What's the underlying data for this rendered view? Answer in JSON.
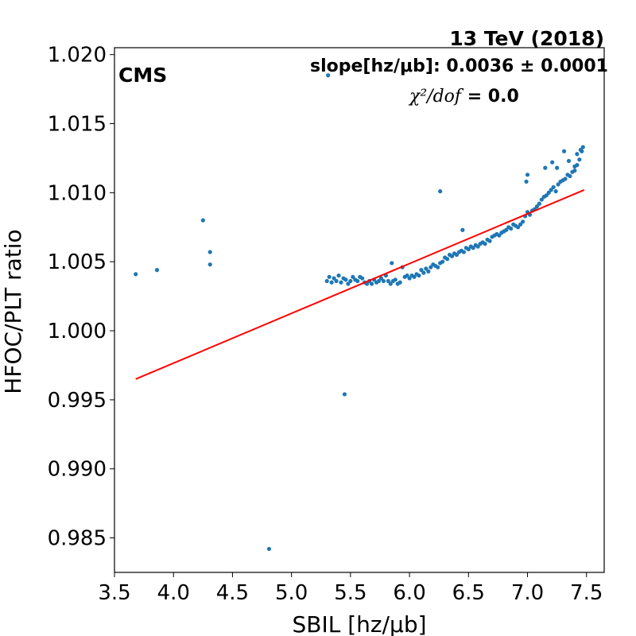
{
  "chart_data": {
    "type": "scatter",
    "title": "13 TeV (2018)",
    "experiment_label": "CMS",
    "xlabel": "SBIL [hz/μb]",
    "ylabel": "HFOC/PLT ratio",
    "xlim": [
      3.5,
      7.65
    ],
    "ylim": [
      0.9825,
      1.0205
    ],
    "xticks": [
      "3.5",
      "4.0",
      "4.5",
      "5.0",
      "5.5",
      "6.0",
      "6.5",
      "7.0",
      "7.5"
    ],
    "yticks": [
      "0.985",
      "0.990",
      "0.995",
      "1.000",
      "1.005",
      "1.010",
      "1.015",
      "1.020"
    ],
    "annotations": {
      "slope_label": "slope[hz/μb]: 0.0036 ± 0.0001",
      "chi2_label": "χ²/dof",
      "chi2_value": " = 0.0"
    },
    "grid": false,
    "colors": {
      "points": "#1f77b4",
      "fit": "#ff0000"
    },
    "fit_line": {
      "x": [
        3.68,
        7.48
      ],
      "y": [
        0.9965,
        1.0102
      ]
    },
    "series": [
      {
        "marker": "dot",
        "points": [
          [
            3.68,
            1.0041
          ],
          [
            3.86,
            1.0044
          ],
          [
            4.25,
            1.008
          ],
          [
            4.31,
            1.0057
          ],
          [
            4.31,
            1.0048
          ],
          [
            4.81,
            0.9842
          ],
          [
            5.31,
            1.0185
          ],
          [
            5.45,
            0.9954
          ],
          [
            6.26,
            1.0101
          ],
          [
            6.45,
            1.0073
          ],
          [
            5.3,
            1.0036
          ],
          [
            5.32,
            1.0039
          ],
          [
            5.34,
            1.0035
          ],
          [
            5.36,
            1.0038
          ],
          [
            5.38,
            1.0036
          ],
          [
            5.4,
            1.004
          ],
          [
            5.42,
            1.0035
          ],
          [
            5.44,
            1.0038
          ],
          [
            5.46,
            1.0037
          ],
          [
            5.48,
            1.0034
          ],
          [
            5.5,
            1.0036
          ],
          [
            5.52,
            1.0039
          ],
          [
            5.54,
            1.0037
          ],
          [
            5.56,
            1.0036
          ],
          [
            5.58,
            1.0039
          ],
          [
            5.6,
            1.0038
          ],
          [
            5.62,
            1.0035
          ],
          [
            5.64,
            1.0034
          ],
          [
            5.66,
            1.0036
          ],
          [
            5.68,
            1.0034
          ],
          [
            5.7,
            1.0037
          ],
          [
            5.72,
            1.0035
          ],
          [
            5.74,
            1.0036
          ],
          [
            5.76,
            1.0038
          ],
          [
            5.78,
            1.0036
          ],
          [
            5.8,
            1.004
          ],
          [
            5.82,
            1.0036
          ],
          [
            5.84,
            1.0034
          ],
          [
            5.85,
            1.0049
          ],
          [
            5.86,
            1.0036
          ],
          [
            5.88,
            1.0037
          ],
          [
            5.9,
            1.0034
          ],
          [
            5.92,
            1.0035
          ],
          [
            5.94,
            1.0046
          ],
          [
            5.96,
            1.0039
          ],
          [
            5.98,
            1.004
          ],
          [
            6.0,
            1.0038
          ],
          [
            6.02,
            1.004
          ],
          [
            6.04,
            1.0039
          ],
          [
            6.06,
            1.0041
          ],
          [
            6.08,
            1.004
          ],
          [
            6.1,
            1.0044
          ],
          [
            6.12,
            1.0042
          ],
          [
            6.14,
            1.0045
          ],
          [
            6.16,
            1.0043
          ],
          [
            6.18,
            1.0046
          ],
          [
            6.2,
            1.0048
          ],
          [
            6.22,
            1.0047
          ],
          [
            6.24,
            1.0046
          ],
          [
            6.26,
            1.0049
          ],
          [
            6.28,
            1.005
          ],
          [
            6.3,
            1.0053
          ],
          [
            6.32,
            1.0052
          ],
          [
            6.34,
            1.0055
          ],
          [
            6.36,
            1.0054
          ],
          [
            6.38,
            1.0056
          ],
          [
            6.4,
            1.0055
          ],
          [
            6.42,
            1.0057
          ],
          [
            6.44,
            1.0058
          ],
          [
            6.46,
            1.0057
          ],
          [
            6.48,
            1.006
          ],
          [
            6.5,
            1.0059
          ],
          [
            6.52,
            1.0061
          ],
          [
            6.54,
            1.006
          ],
          [
            6.56,
            1.0062
          ],
          [
            6.58,
            1.0061
          ],
          [
            6.6,
            1.0063
          ],
          [
            6.62,
            1.0064
          ],
          [
            6.64,
            1.0063
          ],
          [
            6.66,
            1.0066
          ],
          [
            6.68,
            1.0065
          ],
          [
            6.7,
            1.0068
          ],
          [
            6.72,
            1.0069
          ],
          [
            6.74,
            1.007
          ],
          [
            6.76,
            1.0069
          ],
          [
            6.78,
            1.0071
          ],
          [
            6.8,
            1.0072
          ],
          [
            6.82,
            1.0073
          ],
          [
            6.84,
            1.0075
          ],
          [
            6.86,
            1.0074
          ],
          [
            6.88,
            1.0077
          ],
          [
            6.9,
            1.0076
          ],
          [
            6.92,
            1.0075
          ],
          [
            6.94,
            1.0077
          ],
          [
            6.96,
            1.0079
          ],
          [
            6.98,
            1.0083
          ],
          [
            7.0,
            1.0086
          ],
          [
            7.02,
            1.0084
          ],
          [
            7.04,
            1.0087
          ],
          [
            7.06,
            1.0088
          ],
          [
            7.08,
            1.009
          ],
          [
            7.1,
            1.0092
          ],
          [
            7.12,
            1.0095
          ],
          [
            7.14,
            1.0097
          ],
          [
            7.16,
            1.0098
          ],
          [
            7.18,
            1.01
          ],
          [
            7.2,
            1.0102
          ],
          [
            7.22,
            1.0104
          ],
          [
            7.24,
            1.0101
          ],
          [
            7.26,
            1.0106
          ],
          [
            7.28,
            1.0108
          ],
          [
            7.3,
            1.0109
          ],
          [
            7.32,
            1.011
          ],
          [
            7.34,
            1.0113
          ],
          [
            7.36,
            1.0112
          ],
          [
            7.38,
            1.0115
          ],
          [
            7.4,
            1.0116
          ],
          [
            7.42,
            1.012
          ],
          [
            7.44,
            1.0124
          ],
          [
            7.46,
            1.013
          ],
          [
            7.47,
            1.0133
          ],
          [
            6.99,
            1.0108
          ],
          [
            7.0,
            1.0113
          ],
          [
            7.15,
            1.0118
          ],
          [
            7.21,
            1.0122
          ],
          [
            7.25,
            1.0118
          ],
          [
            7.31,
            1.013
          ],
          [
            7.35,
            1.0123
          ],
          [
            7.4,
            1.0119
          ],
          [
            7.42,
            1.0128
          ],
          [
            7.45,
            1.0131
          ]
        ]
      }
    ]
  }
}
